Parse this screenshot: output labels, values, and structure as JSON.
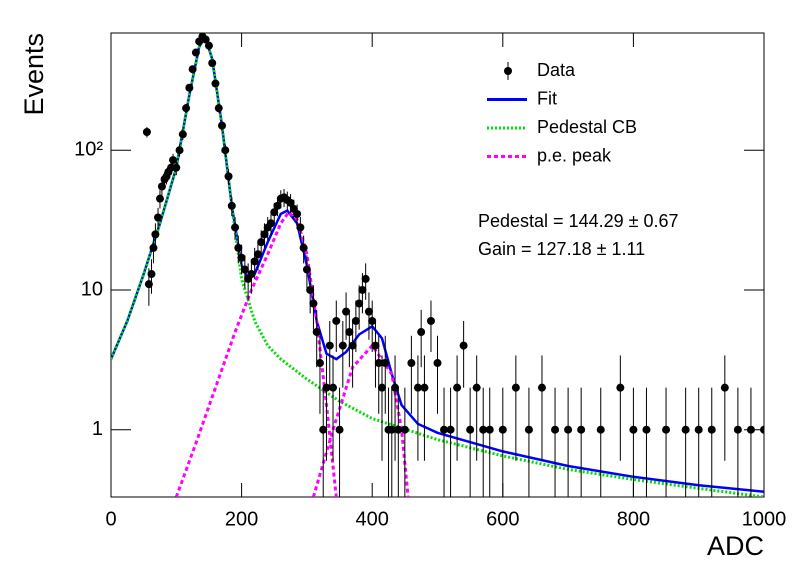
{
  "chart_data": {
    "type": "scatter",
    "x_label": "ADC",
    "y_label": "Events",
    "xlim": [
      0,
      1000
    ],
    "ylim": [
      0.33,
      690
    ],
    "log_y": true,
    "xticks": [
      0,
      200,
      400,
      600,
      800,
      1000
    ],
    "yticks": [
      1,
      10,
      {
        "value": 100,
        "label": "10²"
      }
    ],
    "legend_position": "upper right",
    "annotations": [
      "Pedestal = 144.29 ± 0.67",
      "Gain = 127.18 ± 1.11"
    ],
    "series": [
      {
        "name": "Data",
        "color": "#000000",
        "style": "points",
        "x": [
          55,
          58,
          62,
          65,
          68,
          72,
          75,
          78,
          82,
          85,
          88,
          92,
          95,
          100,
          105,
          110,
          115,
          120,
          125,
          130,
          135,
          140,
          145,
          150,
          155,
          160,
          165,
          170,
          175,
          180,
          185,
          190,
          195,
          200,
          205,
          210,
          215,
          220,
          225,
          230,
          235,
          240,
          245,
          250,
          255,
          260,
          265,
          270,
          275,
          280,
          285,
          290,
          295,
          300,
          305,
          310,
          315,
          320,
          325,
          330,
          335,
          340,
          345,
          350,
          355,
          360,
          365,
          370,
          375,
          380,
          385,
          390,
          395,
          400,
          405,
          410,
          415,
          420,
          425,
          430,
          435,
          440,
          450,
          460,
          470,
          475,
          480,
          490,
          500,
          510,
          520,
          530,
          540,
          550,
          560,
          570,
          580,
          600,
          620,
          640,
          660,
          680,
          700,
          720,
          750,
          780,
          800,
          820,
          850,
          880,
          900,
          920,
          940,
          960,
          980,
          1000
        ],
        "values": [
          135,
          11,
          13,
          20,
          25,
          33,
          45,
          55,
          62,
          65,
          70,
          75,
          85,
          75,
          100,
          130,
          200,
          280,
          380,
          500,
          600,
          650,
          620,
          560,
          420,
          300,
          200,
          150,
          100,
          65,
          40,
          28,
          20,
          17,
          14,
          12,
          13,
          16,
          18,
          22,
          25,
          28,
          30,
          36,
          40,
          45,
          46,
          44,
          42,
          38,
          35,
          28,
          20,
          14,
          10,
          8,
          5,
          3,
          1,
          2,
          4,
          2,
          6,
          1,
          4,
          7,
          5,
          4,
          6,
          8,
          10,
          12,
          7,
          6,
          4,
          3,
          2,
          3,
          1,
          1,
          2,
          1,
          1,
          3,
          2,
          5,
          2,
          6,
          3,
          1,
          1,
          2,
          4,
          1,
          2,
          1,
          1,
          1,
          2,
          1,
          2,
          1,
          1,
          1,
          1,
          2,
          1,
          1,
          1,
          1,
          1,
          1,
          2,
          1,
          1,
          1
        ],
        "errors": [
          11.6,
          3.3,
          3.6,
          4.5,
          5,
          5.7,
          6.7,
          7.4,
          7.9,
          8.1,
          8.4,
          8.7,
          9.2,
          8.7,
          10,
          11.4,
          14.1,
          16.7,
          19.5,
          22.4,
          24.5,
          25.5,
          24.9,
          23.7,
          20.5,
          17.3,
          14.1,
          12.2,
          10,
          8.1,
          6.3,
          5.3,
          4.5,
          4.1,
          3.7,
          3.5,
          3.6,
          4,
          4.2,
          4.7,
          5,
          5.3,
          5.5,
          6,
          6.3,
          6.7,
          6.8,
          6.6,
          6.5,
          6.2,
          5.9,
          5.3,
          4.5,
          3.7,
          3.2,
          2.8,
          2.2,
          1.7,
          1,
          1.4,
          2,
          1.4,
          2.4,
          1,
          2,
          2.6,
          2.2,
          2,
          2.4,
          2.8,
          3.2,
          3.5,
          2.6,
          2.4,
          2,
          1.7,
          1.4,
          1.7,
          1,
          1,
          1.4,
          1,
          1,
          1.7,
          1.4,
          2.2,
          1.4,
          2.4,
          1.7,
          1,
          1,
          1.4,
          2,
          1,
          1.4,
          1,
          1,
          1,
          1.4,
          1,
          1.4,
          1,
          1,
          1,
          1,
          1.4,
          1,
          1,
          1,
          1,
          1,
          1,
          1.4,
          1,
          1,
          1
        ]
      },
      {
        "name": "Fit",
        "color": "#0000ff",
        "style": "solid",
        "x": [
          0,
          25,
          50,
          75,
          100,
          120,
          135,
          144,
          155,
          170,
          185,
          200,
          210,
          220,
          240,
          260,
          270,
          285,
          300,
          315,
          330,
          345,
          360,
          380,
          400,
          415,
          430,
          445,
          470,
          500,
          600,
          700,
          800,
          900,
          1000
        ],
        "values": [
          3.2,
          6,
          13,
          30,
          75,
          250,
          550,
          650,
          450,
          150,
          40,
          15,
          12,
          13,
          22,
          35,
          37,
          30,
          15,
          6,
          3.5,
          3.2,
          3.6,
          4.8,
          5.5,
          4.5,
          2.5,
          1.5,
          1.1,
          0.95,
          0.7,
          0.55,
          0.46,
          0.4,
          0.36
        ]
      },
      {
        "name": "Pedestal CB",
        "color": "#00dd00",
        "style": "dotted",
        "x": [
          0,
          25,
          50,
          75,
          100,
          120,
          135,
          144,
          155,
          170,
          185,
          200,
          220,
          240,
          260,
          300,
          350,
          400,
          500,
          600,
          700,
          800,
          900,
          1000
        ],
        "values": [
          3.2,
          6,
          13,
          30,
          75,
          250,
          550,
          650,
          450,
          150,
          40,
          12,
          6,
          4,
          3.2,
          2.3,
          1.6,
          1.2,
          0.85,
          0.65,
          0.52,
          0.44,
          0.38,
          0.33
        ]
      },
      {
        "name": "p.e. peak",
        "color": "#ff00ff",
        "style": "dashed",
        "x": [
          100,
          130,
          160,
          190,
          215,
          240,
          260,
          272,
          285,
          300,
          315,
          330,
          345,
          null,
          310,
          340,
          370,
          400,
          430,
          445,
          455
        ],
        "values": [
          0.33,
          0.8,
          2,
          5,
          10,
          18,
          30,
          36,
          32,
          18,
          6,
          1.5,
          0.33,
          null,
          0.33,
          1,
          2.8,
          4,
          2.5,
          1,
          0.33
        ]
      }
    ]
  }
}
